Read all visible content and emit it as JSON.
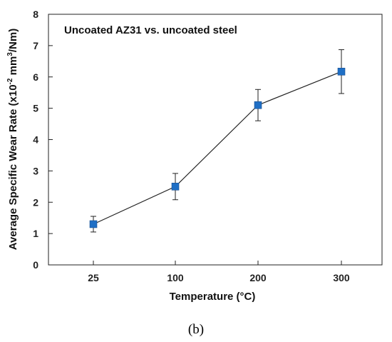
{
  "chart_data": {
    "type": "line",
    "title": "Uncoated AZ31 vs. uncoated steel",
    "xlabel": "Temperature (°C)",
    "ylabel_main": "Average Specific Wear Rate (x10",
    "ylabel_exp1": "-2",
    "ylabel_mid": " mm",
    "ylabel_exp2": "3",
    "ylabel_end": "/Nm)",
    "categories": [
      "25",
      "100",
      "200",
      "300"
    ],
    "series": [
      {
        "values": [
          1.3,
          2.5,
          5.1,
          6.17
        ],
        "errors": [
          0.25,
          0.42,
          0.5,
          0.7
        ],
        "color": "#1f6fc5"
      }
    ],
    "ylim": [
      0,
      8
    ],
    "yticks": [
      "0",
      "1",
      "2",
      "3",
      "4",
      "5",
      "6",
      "7",
      "8"
    ],
    "grid": false,
    "panel_label": "(b)"
  }
}
